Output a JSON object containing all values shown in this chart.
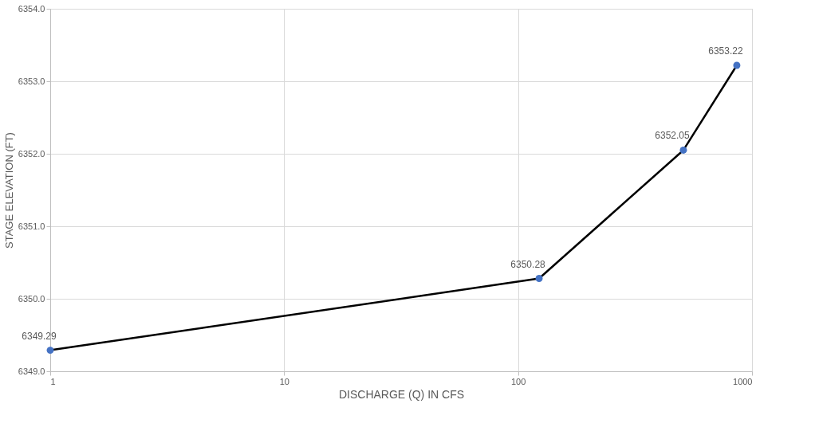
{
  "chart_data": {
    "type": "line",
    "xlabel": "DISCHARGE (Q) IN CFS",
    "ylabel": "STAGE ELEVATION (FT)",
    "x": [
      1,
      123,
      509,
      861
    ],
    "series": [
      {
        "color": "#000000",
        "colors": [
          "#4472c4",
          "#4472c4",
          "#4472c4",
          "#4472c4"
        ],
        "values": [
          6349.29,
          6350.28,
          6352.05,
          6353.22
        ]
      }
    ],
    "xlim": [
      1,
      1000
    ],
    "xticks": [
      1,
      10,
      100,
      1000
    ],
    "ylim": [
      6349,
      6354
    ],
    "yticks": [
      {
        "value": 6349,
        "label": "6349.0"
      },
      {
        "value": 6350,
        "label": "6350.0"
      },
      {
        "value": 6351,
        "label": "6351.0"
      },
      {
        "value": 6352,
        "label": "6352.0"
      },
      {
        "value": 6353,
        "label": "6353.0"
      },
      {
        "value": 6354,
        "label": "6354.0"
      }
    ],
    "log": "x",
    "grid": true,
    "marker": "circle",
    "line_style": "solid",
    "data_labels": true
  }
}
